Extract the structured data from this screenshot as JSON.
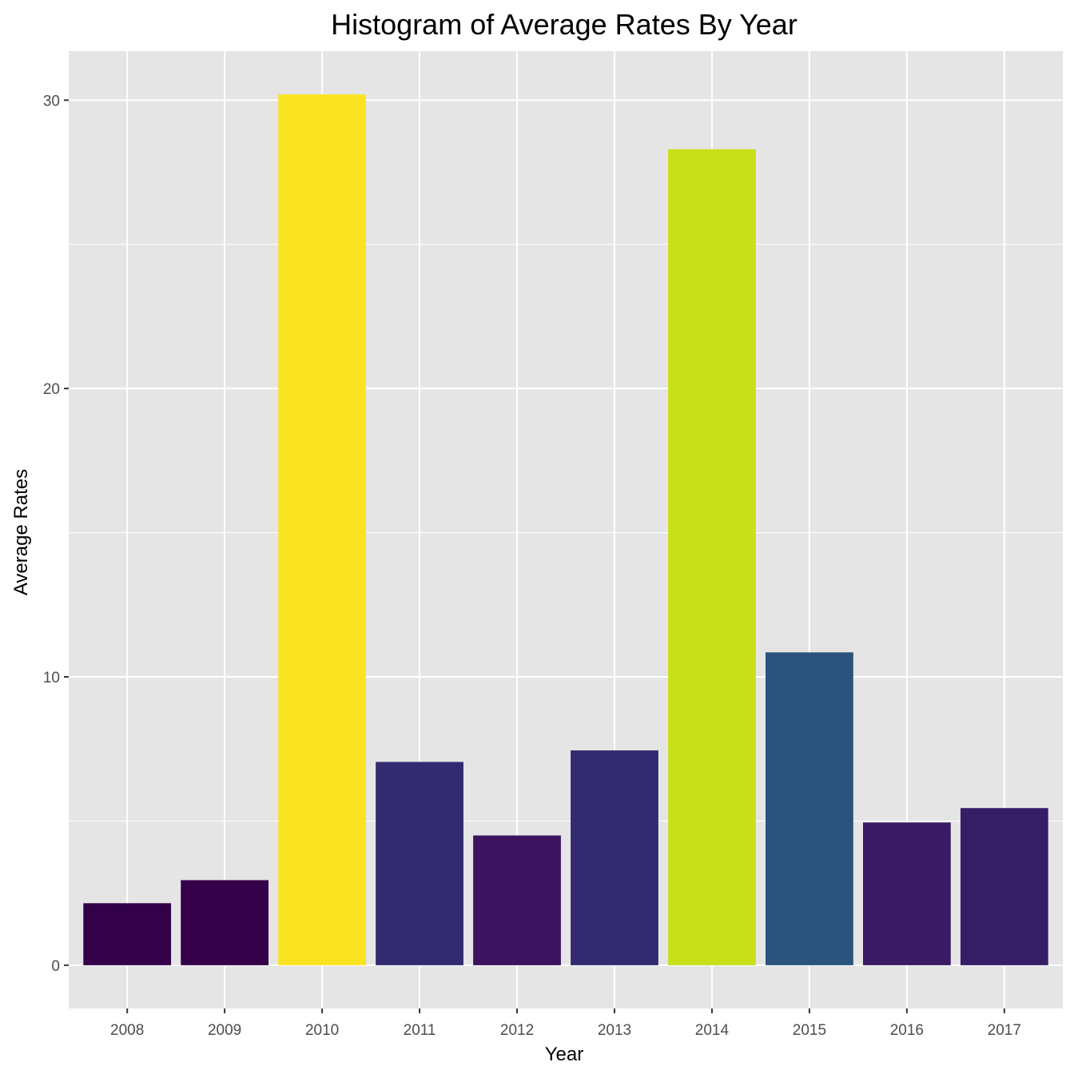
{
  "chart_data": {
    "type": "bar",
    "title": "Histogram of Average Rates By Year",
    "xlabel": "Year",
    "ylabel": "Average Rates",
    "categories": [
      "2008",
      "2009",
      "2010",
      "2011",
      "2012",
      "2013",
      "2014",
      "2015",
      "2016",
      "2017"
    ],
    "values": [
      2.15,
      2.95,
      30.2,
      7.05,
      4.5,
      7.45,
      28.3,
      10.85,
      4.95,
      5.45
    ],
    "bar_colors": [
      "#330148",
      "#350148",
      "#FAE421",
      "#332B70",
      "#3B135E",
      "#332B70",
      "#C8E01A",
      "#2A527C",
      "#3A1A64",
      "#361E67"
    ],
    "ylim": [
      -1.5,
      31.7
    ],
    "yticks": [
      0,
      10,
      20,
      30
    ],
    "grid": true,
    "panel_background": "#E5E5E5",
    "grid_color": "#FFFFFF",
    "legend": "none"
  }
}
